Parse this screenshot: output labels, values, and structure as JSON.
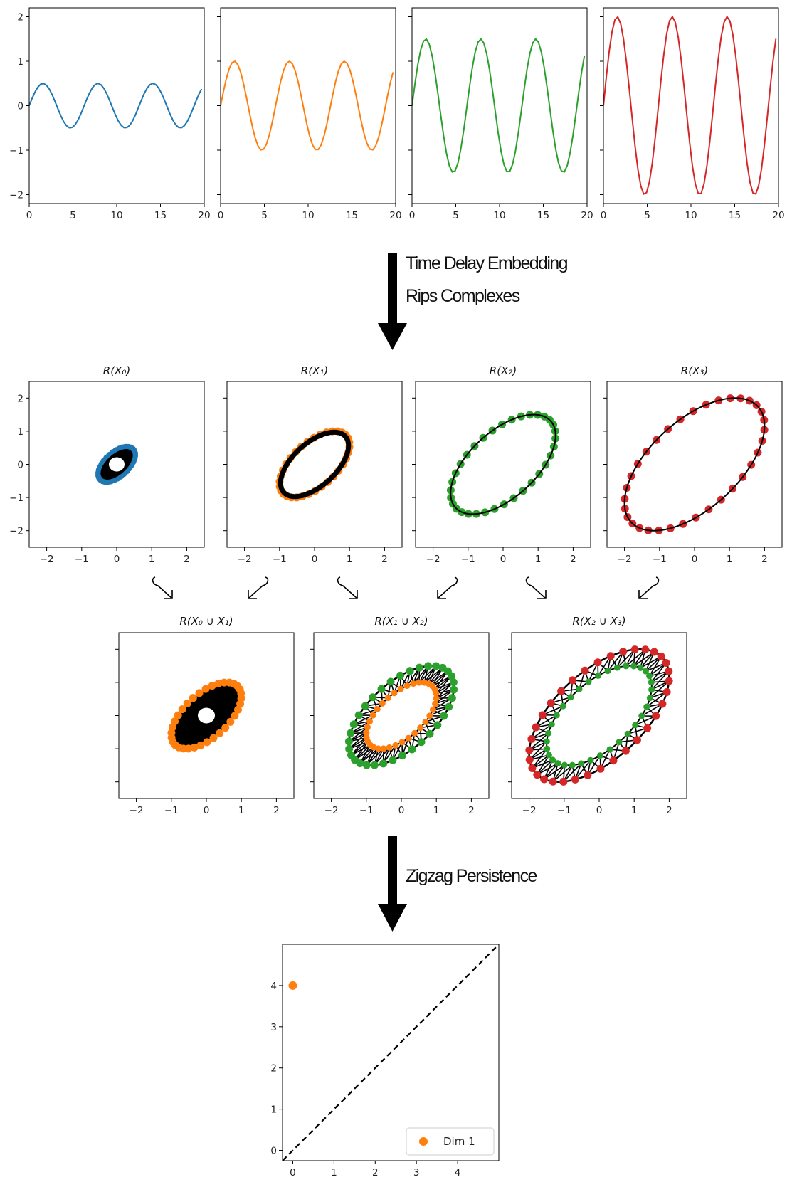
{
  "chart_data": {
    "type": "figure",
    "colors": {
      "c0": "#1f77b4",
      "c1": "#ff7f0e",
      "c2": "#2ca02c",
      "c3": "#d62728",
      "edge": "#000000"
    },
    "time_series": {
      "type": "line",
      "xlim": [
        0,
        20
      ],
      "ylim": [
        -2.2,
        2.2
      ],
      "xticks": [
        0,
        5,
        10,
        15,
        20
      ],
      "yticks": [
        -2,
        -1,
        0,
        1,
        2
      ],
      "series": [
        {
          "color_key": "c0",
          "amplitude": 0.5
        },
        {
          "color_key": "c1",
          "amplitude": 1.0
        },
        {
          "color_key": "c2",
          "amplitude": 1.5
        },
        {
          "color_key": "c3",
          "amplitude": 2.0
        }
      ],
      "period": 6.283,
      "x_max": 19.7
    },
    "step1_labels": [
      "Time Delay Embedding",
      "Rips Complexes"
    ],
    "rips_complexes": {
      "type": "scatter",
      "xlim": [
        -2.5,
        2.5
      ],
      "ylim": [
        -2.5,
        2.5
      ],
      "xticks": [
        -2,
        -1,
        0,
        1,
        2
      ],
      "yticks": [
        -2,
        -1,
        0,
        1,
        2
      ],
      "panels": [
        {
          "title": "R(X₀)",
          "color_key": "c0",
          "amplitude": 0.5
        },
        {
          "title": "R(X₁)",
          "color_key": "c1",
          "amplitude": 1.0
        },
        {
          "title": "R(X₂)",
          "color_key": "c2",
          "amplitude": 1.5
        },
        {
          "title": "R(X₃)",
          "color_key": "c3",
          "amplitude": 2.0
        }
      ]
    },
    "union_complexes": {
      "type": "scatter",
      "xlim": [
        -2.5,
        2.5
      ],
      "ylim": [
        -2.5,
        2.5
      ],
      "xticks": [
        -2,
        -1,
        0,
        1,
        2
      ],
      "panels": [
        {
          "title": "R(X₀ ∪ X₁)",
          "inner_color_key": "c0",
          "outer_color_key": "c1",
          "inner_amplitude": 0.5,
          "outer_amplitude": 1.0
        },
        {
          "title": "R(X₁ ∪ X₂)",
          "inner_color_key": "c1",
          "outer_color_key": "c2",
          "inner_amplitude": 1.0,
          "outer_amplitude": 1.5
        },
        {
          "title": "R(X₂ ∪ X₃)",
          "inner_color_key": "c2",
          "outer_color_key": "c3",
          "inner_amplitude": 1.5,
          "outer_amplitude": 2.0
        }
      ]
    },
    "step2_label": "Zigzag Persistence",
    "persistence_diagram": {
      "type": "scatter",
      "xlim": [
        -0.25,
        5.0
      ],
      "ylim": [
        -0.25,
        5.0
      ],
      "xticks": [
        0,
        1,
        2,
        3,
        4
      ],
      "yticks": [
        0,
        1,
        2,
        3,
        4
      ],
      "points": [
        {
          "birth": 0,
          "death": 4,
          "color_key": "c1"
        }
      ],
      "legend": {
        "label": "Dim 1",
        "color_key": "c1",
        "position": "lower-right"
      }
    }
  }
}
